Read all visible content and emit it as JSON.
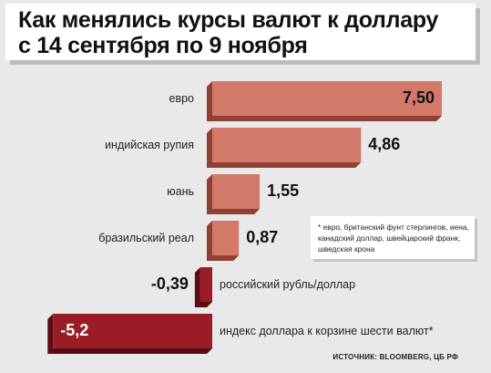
{
  "chart_data": {
    "type": "bar",
    "orientation": "horizontal",
    "title_line1": "Как менялись курсы валют к доллару",
    "title_line2": "с 14 сентября по 9 ноября",
    "categories": [
      "евро",
      "индийская рупия",
      "юань",
      "бразильский реал",
      "российский рубль/доллар",
      "индекс доллара к корзине шести валют*"
    ],
    "values": [
      7.5,
      4.86,
      1.55,
      0.87,
      -0.39,
      -5.2
    ],
    "value_labels": [
      "7,50",
      "4,86",
      "1,55",
      "0,87",
      "-0,39",
      "-5,2"
    ],
    "colors": {
      "positive": "#d2796a",
      "positive_side": "#8f4234",
      "negative": "#9a1c26",
      "negative_side": "#5a0e14"
    },
    "footnote": "* евро, британский фунт стерлингов, иена, канадский доллар, швейцарский франк, шведская крона",
    "source": "ИСТОЧНИК: BLOOMBERG, ЦБ РФ"
  }
}
